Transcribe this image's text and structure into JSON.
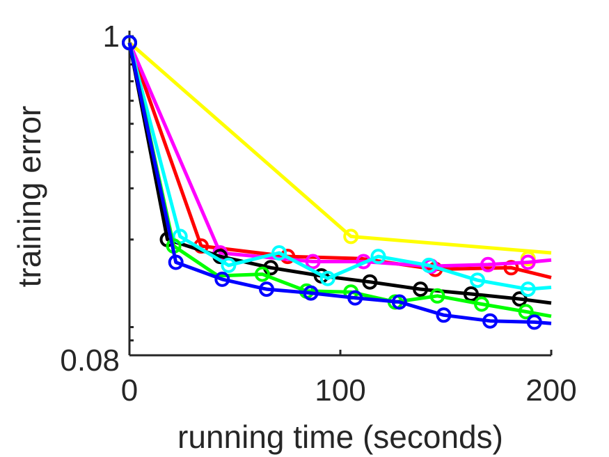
{
  "chart_data": {
    "type": "line",
    "xlabel": "running time (seconds)",
    "ylabel": "training error",
    "xlim": [
      0,
      200
    ],
    "ylim": [
      0.08,
      1
    ],
    "yscale": "log",
    "xticks": [
      0,
      100,
      200
    ],
    "xtick_labels": [
      "0",
      "100",
      "200"
    ],
    "yticks": [
      0.08,
      1
    ],
    "ytick_labels": [
      "0.08",
      "1"
    ],
    "grid": false,
    "series": [
      {
        "color": "#ffff00",
        "x": [
          0,
          105,
          200
        ],
        "y": [
          0.95,
          0.205,
          0.18
        ],
        "markers": [
          [
            0,
            0.95
          ],
          [
            105,
            0.205
          ],
          [
            189,
            0.172
          ]
        ]
      },
      {
        "color": "#ff0000",
        "x": [
          0,
          34,
          75,
          110,
          145,
          181,
          200
        ],
        "y": [
          0.95,
          0.19,
          0.175,
          0.172,
          0.158,
          0.16,
          0.148
        ],
        "markers": [
          [
            0,
            0.95
          ],
          [
            34,
            0.19
          ],
          [
            75,
            0.175
          ],
          [
            145,
            0.158
          ],
          [
            181,
            0.16
          ]
        ]
      },
      {
        "color": "#ff00ff",
        "x": [
          0,
          43,
          87,
          111,
          143,
          170,
          189,
          200
        ],
        "y": [
          0.95,
          0.18,
          0.168,
          0.168,
          0.162,
          0.164,
          0.167,
          0.17
        ],
        "markers": [
          [
            0,
            0.95
          ],
          [
            43,
            0.18
          ],
          [
            87,
            0.168
          ],
          [
            111,
            0.168
          ],
          [
            143,
            0.162
          ],
          [
            170,
            0.164
          ],
          [
            189,
            0.167
          ]
        ]
      },
      {
        "color": "#000000",
        "x": [
          0,
          18,
          43,
          67,
          91,
          114,
          138,
          162,
          185,
          200
        ],
        "y": [
          0.95,
          0.2,
          0.175,
          0.16,
          0.15,
          0.143,
          0.135,
          0.13,
          0.125,
          0.121
        ],
        "markers": [
          [
            0,
            0.95
          ],
          [
            18,
            0.2
          ],
          [
            43,
            0.175
          ],
          [
            67,
            0.16
          ],
          [
            91,
            0.15
          ],
          [
            114,
            0.143
          ],
          [
            138,
            0.135
          ],
          [
            162,
            0.13
          ],
          [
            185,
            0.125
          ]
        ]
      },
      {
        "color": "#00ffff",
        "x": [
          0,
          24,
          47,
          71,
          94,
          118,
          142,
          165,
          189,
          200
        ],
        "y": [
          0.95,
          0.205,
          0.163,
          0.18,
          0.147,
          0.175,
          0.163,
          0.145,
          0.135,
          0.137
        ],
        "markers": [
          [
            0,
            0.95
          ],
          [
            24,
            0.205
          ],
          [
            47,
            0.163
          ],
          [
            71,
            0.18
          ],
          [
            94,
            0.147
          ],
          [
            118,
            0.175
          ],
          [
            142,
            0.163
          ],
          [
            165,
            0.145
          ],
          [
            189,
            0.135
          ]
        ]
      },
      {
        "color": "#00ff00",
        "x": [
          0,
          21,
          42,
          63,
          84,
          105,
          126,
          146,
          167,
          188,
          200
        ],
        "y": [
          0.95,
          0.19,
          0.15,
          0.152,
          0.133,
          0.132,
          0.122,
          0.128,
          0.12,
          0.113,
          0.109
        ],
        "markers": [
          [
            0,
            0.95
          ],
          [
            21,
            0.19
          ],
          [
            63,
            0.152
          ],
          [
            84,
            0.133
          ],
          [
            105,
            0.132
          ],
          [
            126,
            0.122
          ],
          [
            146,
            0.128
          ],
          [
            167,
            0.12
          ],
          [
            188,
            0.113
          ]
        ]
      },
      {
        "color": "#0000ff",
        "x": [
          0,
          22,
          44,
          65,
          86,
          107,
          128,
          149,
          171,
          192,
          200
        ],
        "y": [
          0.95,
          0.167,
          0.146,
          0.135,
          0.131,
          0.126,
          0.122,
          0.11,
          0.105,
          0.104,
          0.103
        ],
        "markers": [
          [
            0,
            0.95
          ],
          [
            22,
            0.167
          ],
          [
            44,
            0.146
          ],
          [
            65,
            0.135
          ],
          [
            86,
            0.131
          ],
          [
            107,
            0.126
          ],
          [
            128,
            0.122
          ],
          [
            149,
            0.11
          ],
          [
            171,
            0.105
          ],
          [
            192,
            0.104
          ]
        ]
      }
    ]
  }
}
